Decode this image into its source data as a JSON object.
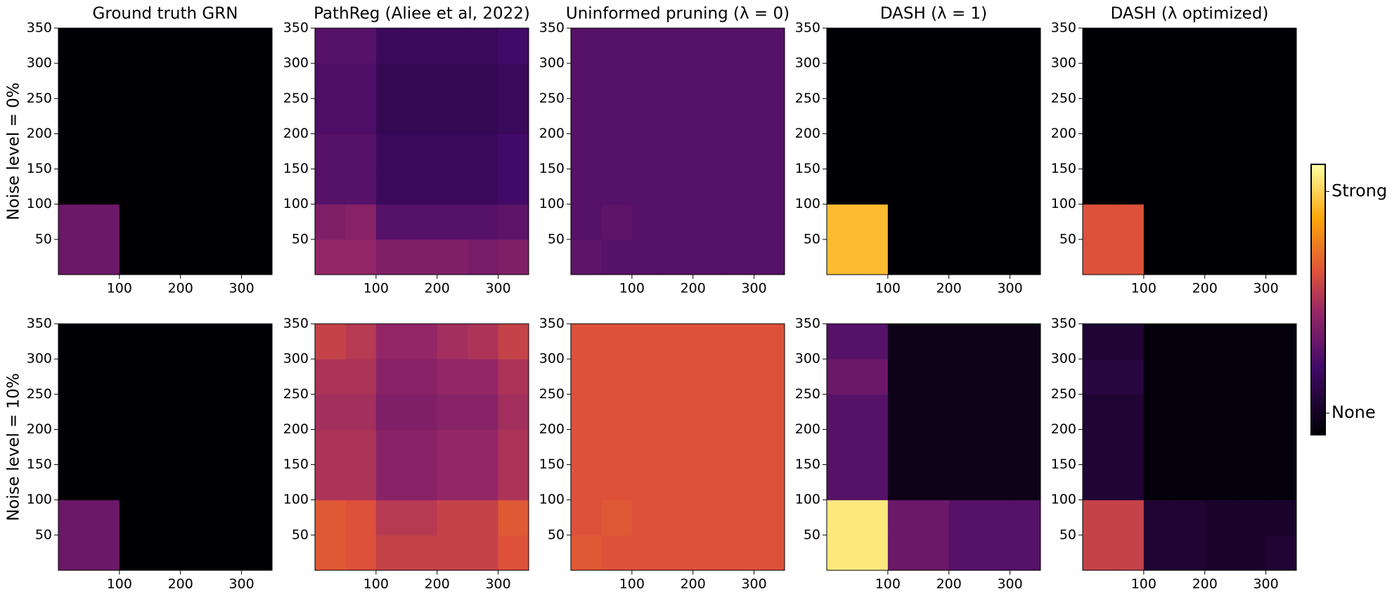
{
  "chart_data": [
    {
      "type": "heatmap",
      "title": "Ground truth GRN",
      "ylabel": "Noise level = 0%",
      "xlim": [
        0,
        350
      ],
      "ylim": [
        0,
        350
      ],
      "xticks": [
        100,
        200,
        300
      ],
      "yticks": [
        50,
        100,
        150,
        200,
        250,
        300,
        350
      ],
      "z": [
        [
          0.35,
          0.35,
          0,
          0,
          0,
          0,
          0
        ],
        [
          0.35,
          0.35,
          0,
          0,
          0,
          0,
          0
        ],
        [
          0,
          0,
          0,
          0,
          0,
          0,
          0
        ],
        [
          0,
          0,
          0,
          0,
          0,
          0,
          0
        ],
        [
          0,
          0,
          0,
          0,
          0,
          0,
          0
        ],
        [
          0,
          0,
          0,
          0,
          0,
          0,
          0
        ],
        [
          0,
          0,
          0,
          0,
          0,
          0,
          0
        ]
      ]
    },
    {
      "type": "heatmap",
      "title": "PathReg (Aliee et al, 2022)",
      "xlim": [
        0,
        350
      ],
      "ylim": [
        0,
        350
      ],
      "xticks": [
        100,
        200,
        300
      ],
      "yticks": [
        50,
        100,
        150,
        200,
        250,
        300,
        350
      ],
      "z": [
        [
          0.45,
          0.45,
          0.4,
          0.4,
          0.4,
          0.38,
          0.4
        ],
        [
          0.4,
          0.42,
          0.3,
          0.3,
          0.3,
          0.3,
          0.32
        ],
        [
          0.3,
          0.3,
          0.22,
          0.22,
          0.22,
          0.22,
          0.25
        ],
        [
          0.3,
          0.3,
          0.22,
          0.22,
          0.22,
          0.22,
          0.25
        ],
        [
          0.28,
          0.28,
          0.2,
          0.2,
          0.2,
          0.2,
          0.22
        ],
        [
          0.28,
          0.28,
          0.2,
          0.2,
          0.2,
          0.2,
          0.22
        ],
        [
          0.3,
          0.3,
          0.22,
          0.22,
          0.22,
          0.22,
          0.25
        ]
      ]
    },
    {
      "type": "heatmap",
      "title": "Uninformed pruning (λ = 0)",
      "xlim": [
        0,
        350
      ],
      "ylim": [
        0,
        350
      ],
      "xticks": [
        100,
        200,
        300
      ],
      "yticks": [
        50,
        100,
        150,
        200,
        250,
        300,
        350
      ],
      "z": [
        [
          0.32,
          0.3,
          0.3,
          0.3,
          0.3,
          0.3,
          0.3
        ],
        [
          0.3,
          0.32,
          0.3,
          0.3,
          0.3,
          0.3,
          0.3
        ],
        [
          0.3,
          0.3,
          0.3,
          0.3,
          0.3,
          0.3,
          0.3
        ],
        [
          0.3,
          0.3,
          0.3,
          0.3,
          0.3,
          0.3,
          0.3
        ],
        [
          0.3,
          0.3,
          0.3,
          0.3,
          0.3,
          0.3,
          0.3
        ],
        [
          0.3,
          0.3,
          0.3,
          0.3,
          0.3,
          0.3,
          0.3
        ],
        [
          0.3,
          0.3,
          0.3,
          0.3,
          0.3,
          0.3,
          0.3
        ]
      ]
    },
    {
      "type": "heatmap",
      "title": "DASH (λ = 1)",
      "xlim": [
        0,
        350
      ],
      "ylim": [
        0,
        350
      ],
      "xticks": [
        100,
        200,
        300
      ],
      "yticks": [
        50,
        100,
        150,
        200,
        250,
        300,
        350
      ],
      "z": [
        [
          0.85,
          0.85,
          0,
          0,
          0,
          0,
          0
        ],
        [
          0.85,
          0.85,
          0,
          0,
          0,
          0,
          0
        ],
        [
          0,
          0,
          0,
          0,
          0,
          0,
          0
        ],
        [
          0,
          0,
          0,
          0,
          0,
          0,
          0
        ],
        [
          0,
          0,
          0,
          0,
          0,
          0,
          0
        ],
        [
          0,
          0,
          0,
          0,
          0,
          0,
          0
        ],
        [
          0,
          0,
          0,
          0,
          0,
          0,
          0
        ]
      ]
    },
    {
      "type": "heatmap",
      "title": "DASH (λ optimized)",
      "xlim": [
        0,
        350
      ],
      "ylim": [
        0,
        350
      ],
      "xticks": [
        100,
        200,
        300
      ],
      "yticks": [
        50,
        100,
        150,
        200,
        250,
        300,
        350
      ],
      "z": [
        [
          0.6,
          0.6,
          0,
          0,
          0,
          0,
          0
        ],
        [
          0.6,
          0.6,
          0,
          0,
          0,
          0,
          0
        ],
        [
          0,
          0,
          0,
          0,
          0,
          0,
          0
        ],
        [
          0,
          0,
          0,
          0,
          0,
          0,
          0
        ],
        [
          0,
          0,
          0,
          0,
          0,
          0,
          0
        ],
        [
          0,
          0,
          0,
          0,
          0,
          0,
          0
        ],
        [
          0,
          0,
          0,
          0,
          0,
          0,
          0
        ]
      ]
    },
    {
      "type": "heatmap",
      "ylabel": "Noise level = 10%",
      "xlim": [
        0,
        350
      ],
      "ylim": [
        0,
        350
      ],
      "xticks": [
        100,
        200,
        300
      ],
      "yticks": [
        50,
        100,
        150,
        200,
        250,
        300,
        350
      ],
      "z": [
        [
          0.35,
          0.35,
          0,
          0,
          0,
          0,
          0
        ],
        [
          0.35,
          0.35,
          0,
          0,
          0,
          0,
          0
        ],
        [
          0,
          0,
          0,
          0,
          0,
          0,
          0
        ],
        [
          0,
          0,
          0,
          0,
          0,
          0,
          0
        ],
        [
          0,
          0,
          0,
          0,
          0,
          0,
          0
        ],
        [
          0,
          0,
          0,
          0,
          0,
          0,
          0
        ],
        [
          0,
          0,
          0,
          0,
          0,
          0,
          0
        ]
      ]
    },
    {
      "type": "heatmap",
      "xlim": [
        0,
        350
      ],
      "ylim": [
        0,
        350
      ],
      "xticks": [
        100,
        200,
        300
      ],
      "yticks": [
        50,
        100,
        150,
        200,
        250,
        300,
        350
      ],
      "z": [
        [
          0.62,
          0.6,
          0.55,
          0.55,
          0.55,
          0.55,
          0.6
        ],
        [
          0.62,
          0.6,
          0.52,
          0.52,
          0.55,
          0.55,
          0.62
        ],
        [
          0.5,
          0.5,
          0.42,
          0.42,
          0.45,
          0.45,
          0.5
        ],
        [
          0.5,
          0.5,
          0.42,
          0.42,
          0.45,
          0.45,
          0.5
        ],
        [
          0.48,
          0.48,
          0.4,
          0.4,
          0.42,
          0.42,
          0.48
        ],
        [
          0.5,
          0.5,
          0.42,
          0.42,
          0.45,
          0.45,
          0.5
        ],
        [
          0.55,
          0.52,
          0.45,
          0.45,
          0.48,
          0.5,
          0.55
        ]
      ]
    },
    {
      "type": "heatmap",
      "xlim": [
        0,
        350
      ],
      "ylim": [
        0,
        350
      ],
      "xticks": [
        100,
        200,
        300
      ],
      "yticks": [
        50,
        100,
        150,
        200,
        250,
        300,
        350
      ],
      "z": [
        [
          0.62,
          0.6,
          0.6,
          0.6,
          0.6,
          0.6,
          0.6
        ],
        [
          0.6,
          0.62,
          0.6,
          0.6,
          0.6,
          0.6,
          0.6
        ],
        [
          0.6,
          0.6,
          0.6,
          0.6,
          0.6,
          0.6,
          0.6
        ],
        [
          0.6,
          0.6,
          0.6,
          0.6,
          0.6,
          0.6,
          0.6
        ],
        [
          0.6,
          0.6,
          0.6,
          0.6,
          0.6,
          0.6,
          0.6
        ],
        [
          0.6,
          0.6,
          0.6,
          0.6,
          0.6,
          0.6,
          0.6
        ],
        [
          0.6,
          0.6,
          0.6,
          0.6,
          0.6,
          0.6,
          0.6
        ]
      ]
    },
    {
      "type": "heatmap",
      "xlim": [
        0,
        350
      ],
      "ylim": [
        0,
        350
      ],
      "xticks": [
        100,
        200,
        300
      ],
      "yticks": [
        50,
        100,
        150,
        200,
        250,
        300,
        350
      ],
      "z": [
        [
          0.95,
          0.95,
          0.35,
          0.35,
          0.3,
          0.3,
          0.3
        ],
        [
          0.95,
          0.95,
          0.35,
          0.35,
          0.3,
          0.3,
          0.3
        ],
        [
          0.3,
          0.3,
          0.05,
          0.05,
          0.05,
          0.05,
          0.05
        ],
        [
          0.3,
          0.3,
          0.05,
          0.05,
          0.05,
          0.05,
          0.05
        ],
        [
          0.3,
          0.3,
          0.05,
          0.05,
          0.05,
          0.05,
          0.05
        ],
        [
          0.35,
          0.35,
          0.05,
          0.05,
          0.05,
          0.05,
          0.05
        ],
        [
          0.3,
          0.3,
          0.05,
          0.05,
          0.05,
          0.05,
          0.05
        ]
      ]
    },
    {
      "type": "heatmap",
      "xlim": [
        0,
        350
      ],
      "ylim": [
        0,
        350
      ],
      "xticks": [
        100,
        200,
        300
      ],
      "yticks": [
        50,
        100,
        150,
        200,
        250,
        300,
        350
      ],
      "z": [
        [
          0.55,
          0.55,
          0.12,
          0.12,
          0.1,
          0.1,
          0.12
        ],
        [
          0.55,
          0.55,
          0.12,
          0.12,
          0.1,
          0.1,
          0.1
        ],
        [
          0.12,
          0.12,
          0.02,
          0.02,
          0.02,
          0.02,
          0.02
        ],
        [
          0.12,
          0.12,
          0.02,
          0.02,
          0.02,
          0.02,
          0.02
        ],
        [
          0.12,
          0.12,
          0.02,
          0.02,
          0.02,
          0.02,
          0.02
        ],
        [
          0.15,
          0.15,
          0.02,
          0.02,
          0.02,
          0.02,
          0.02
        ],
        [
          0.12,
          0.12,
          0.02,
          0.02,
          0.02,
          0.02,
          0.02
        ]
      ]
    }
  ],
  "colorbar": {
    "colormap": "inferno",
    "lim": [
      0,
      1
    ],
    "ticks": [
      {
        "value": 0.9,
        "label": "Strong"
      },
      {
        "value": 0.08,
        "label": "None"
      }
    ]
  }
}
